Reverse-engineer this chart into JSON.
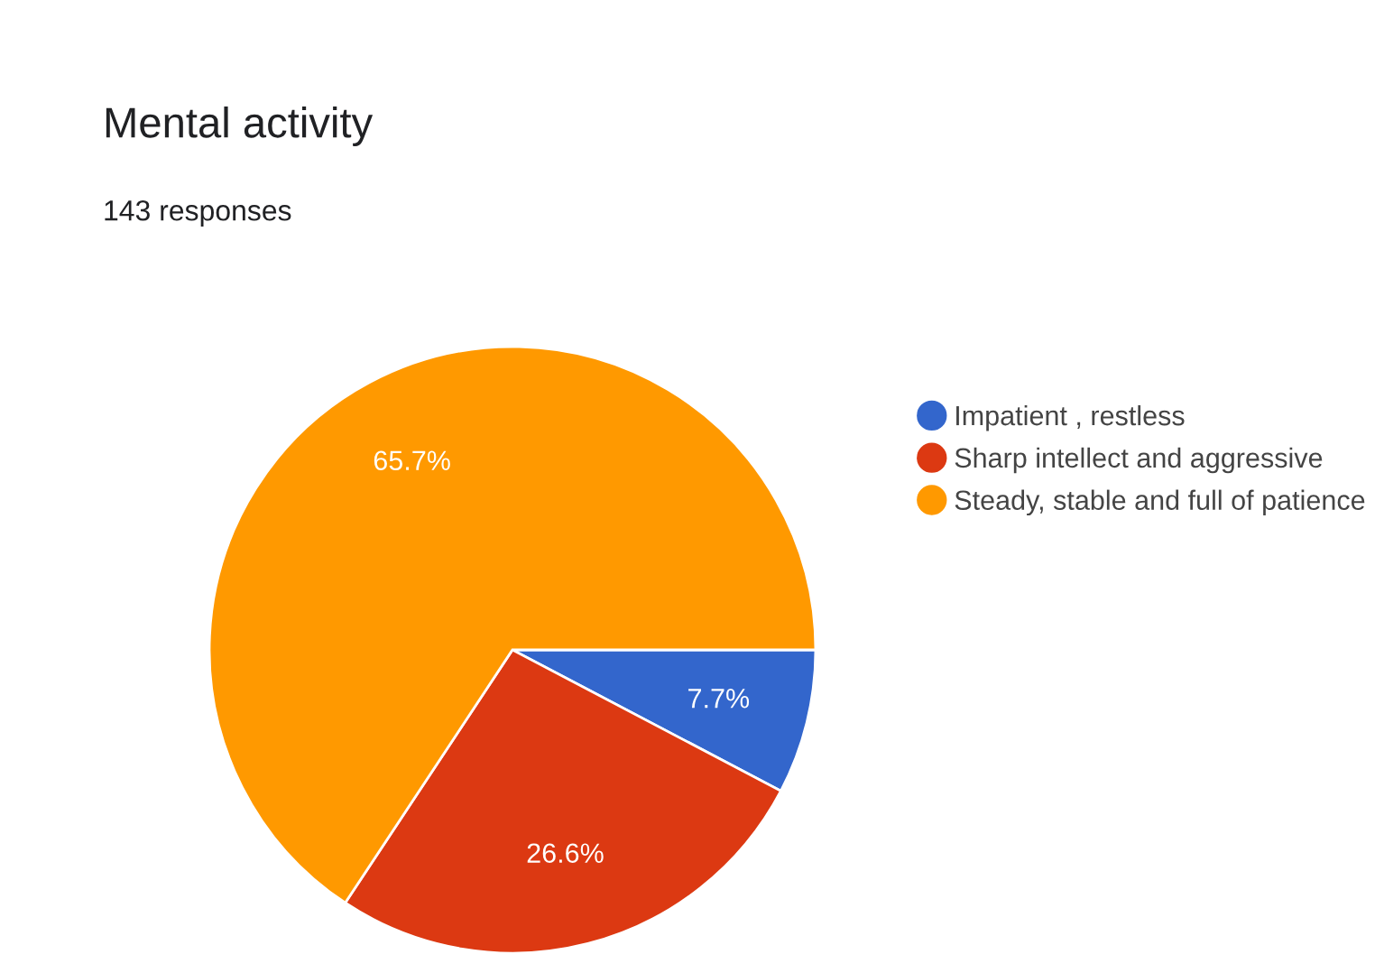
{
  "chart_data": {
    "type": "pie",
    "title": "Mental activity",
    "subtitle": "143 responses",
    "categories": [
      "Impatient , restless",
      "Sharp intellect and aggressive",
      "Steady, stable and full of patience"
    ],
    "values": [
      7.7,
      26.6,
      65.7
    ],
    "colors": [
      "#3366cc",
      "#dc3912",
      "#ff9900"
    ],
    "value_labels": [
      "7.7%",
      "26.6%",
      "65.7%"
    ],
    "legend": "right"
  }
}
